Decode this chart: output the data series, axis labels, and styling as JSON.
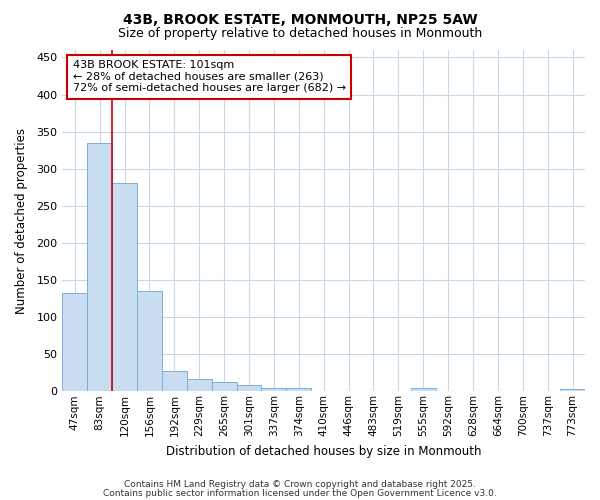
{
  "title_line1": "43B, BROOK ESTATE, MONMOUTH, NP25 5AW",
  "title_line2": "Size of property relative to detached houses in Monmouth",
  "xlabel": "Distribution of detached houses by size in Monmouth",
  "ylabel": "Number of detached properties",
  "categories": [
    "47sqm",
    "83sqm",
    "120sqm",
    "156sqm",
    "192sqm",
    "229sqm",
    "265sqm",
    "301sqm",
    "337sqm",
    "374sqm",
    "410sqm",
    "446sqm",
    "483sqm",
    "519sqm",
    "555sqm",
    "592sqm",
    "628sqm",
    "664sqm",
    "700sqm",
    "737sqm",
    "773sqm"
  ],
  "values": [
    133,
    335,
    281,
    135,
    27,
    16,
    12,
    8,
    5,
    4,
    0,
    0,
    0,
    0,
    4,
    0,
    0,
    0,
    0,
    0,
    3
  ],
  "bar_color": "#c8ddf0",
  "bar_edge_color": "#7ab0d8",
  "red_line_x": 1.5,
  "annotation_text": "43B BROOK ESTATE: 101sqm\n← 28% of detached houses are smaller (263)\n72% of semi-detached houses are larger (682) →",
  "annotation_box_color": "#ffffff",
  "annotation_edge_color": "#cc0000",
  "ylim": [
    0,
    460
  ],
  "yticks": [
    0,
    50,
    100,
    150,
    200,
    250,
    300,
    350,
    400,
    450
  ],
  "plot_bg_color": "#ffffff",
  "fig_bg_color": "#ffffff",
  "grid_color": "#c8d8e8",
  "footer_line1": "Contains HM Land Registry data © Crown copyright and database right 2025.",
  "footer_line2": "Contains public sector information licensed under the Open Government Licence v3.0."
}
